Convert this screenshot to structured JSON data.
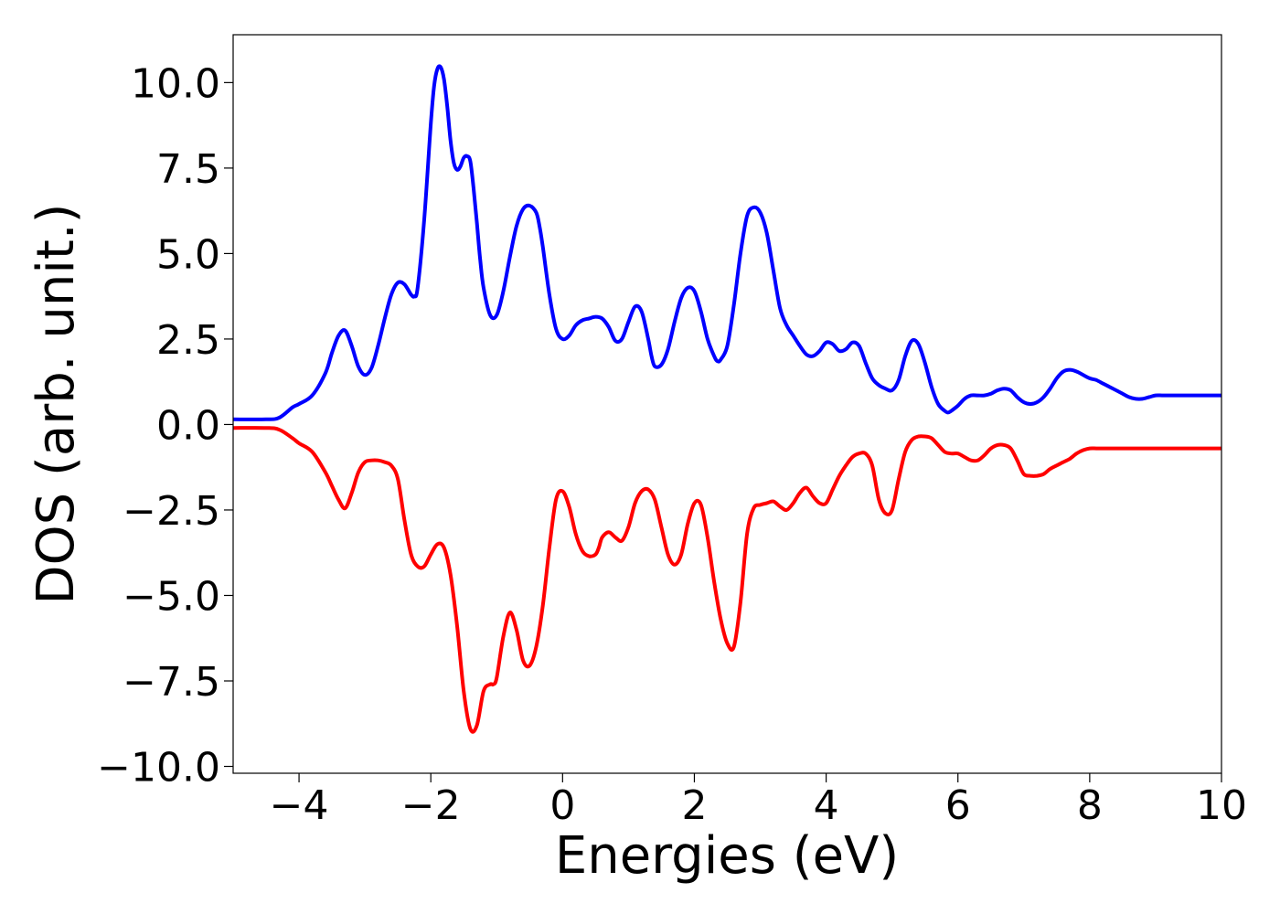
{
  "chart_data": {
    "type": "line",
    "title": "",
    "xlabel": "Energies (eV)",
    "ylabel": "DOS (arb. unit.)",
    "xlim": [
      -5,
      10
    ],
    "ylim": [
      -10.2,
      11.4
    ],
    "grid": false,
    "legend": "none",
    "x_ticks": [
      -4,
      -2,
      0,
      2,
      4,
      6,
      8,
      10
    ],
    "x_tick_labels": [
      "−4",
      "−2",
      "0",
      "2",
      "4",
      "6",
      "8",
      "10"
    ],
    "y_ticks": [
      10.0,
      7.5,
      5.0,
      2.5,
      0.0,
      -2.5,
      -5.0,
      -7.5,
      -10.0
    ],
    "y_tick_labels": [
      "10.0",
      "7.5",
      "5.0",
      "2.5",
      "0.0",
      "−2.5",
      "−5.0",
      "−7.5",
      "−10.0"
    ],
    "series": [
      {
        "color": "#0000ff",
        "x": [
          -5.0,
          -4.5,
          -4.3,
          -4.1,
          -4.0,
          -3.8,
          -3.6,
          -3.5,
          -3.4,
          -3.3,
          -3.2,
          -3.1,
          -3.0,
          -2.9,
          -2.8,
          -2.7,
          -2.6,
          -2.5,
          -2.4,
          -2.3,
          -2.25,
          -2.2,
          -2.1,
          -2.0,
          -1.95,
          -1.9,
          -1.85,
          -1.8,
          -1.75,
          -1.7,
          -1.65,
          -1.6,
          -1.55,
          -1.5,
          -1.45,
          -1.4,
          -1.35,
          -1.3,
          -1.25,
          -1.2,
          -1.1,
          -1.0,
          -0.9,
          -0.8,
          -0.7,
          -0.6,
          -0.5,
          -0.4,
          -0.35,
          -0.3,
          -0.2,
          -0.1,
          0.0,
          0.1,
          0.2,
          0.3,
          0.4,
          0.5,
          0.6,
          0.7,
          0.8,
          0.9,
          1.0,
          1.1,
          1.2,
          1.3,
          1.35,
          1.4,
          1.5,
          1.6,
          1.7,
          1.8,
          1.9,
          2.0,
          2.1,
          2.2,
          2.3,
          2.35,
          2.4,
          2.5,
          2.6,
          2.7,
          2.8,
          2.9,
          3.0,
          3.1,
          3.2,
          3.3,
          3.4,
          3.5,
          3.6,
          3.7,
          3.8,
          3.9,
          4.0,
          4.1,
          4.2,
          4.3,
          4.4,
          4.5,
          4.6,
          4.7,
          4.8,
          4.9,
          5.0,
          5.1,
          5.2,
          5.3,
          5.4,
          5.5,
          5.6,
          5.7,
          5.8,
          5.85,
          5.9,
          6.0,
          6.1,
          6.2,
          6.3,
          6.4,
          6.5,
          6.6,
          6.7,
          6.8,
          6.9,
          7.0,
          7.1,
          7.2,
          7.3,
          7.4,
          7.5,
          7.6,
          7.7,
          7.8,
          7.9,
          8.0,
          8.1,
          8.2,
          8.3,
          8.4,
          8.5,
          8.6,
          8.7,
          8.8,
          8.9,
          9.0,
          9.1,
          9.2,
          9.3,
          9.4,
          9.5,
          9.6,
          9.7,
          9.8,
          9.9,
          10.0
        ],
        "y": [
          0.15,
          0.15,
          0.2,
          0.5,
          0.6,
          0.85,
          1.5,
          2.1,
          2.6,
          2.75,
          2.3,
          1.7,
          1.45,
          1.65,
          2.3,
          3.1,
          3.8,
          4.15,
          4.1,
          3.8,
          3.75,
          4.0,
          6.0,
          8.8,
          9.9,
          10.4,
          10.45,
          10.1,
          9.3,
          8.3,
          7.65,
          7.45,
          7.55,
          7.8,
          7.85,
          7.7,
          6.9,
          5.9,
          4.8,
          4.0,
          3.2,
          3.2,
          3.9,
          4.9,
          5.8,
          6.3,
          6.4,
          6.2,
          5.8,
          5.2,
          3.8,
          2.8,
          2.5,
          2.6,
          2.9,
          3.05,
          3.1,
          3.15,
          3.1,
          2.85,
          2.45,
          2.5,
          3.0,
          3.45,
          3.3,
          2.5,
          2.0,
          1.7,
          1.75,
          2.2,
          3.0,
          3.7,
          4.0,
          3.9,
          3.3,
          2.5,
          2.0,
          1.85,
          1.9,
          2.3,
          3.5,
          5.0,
          6.1,
          6.35,
          6.2,
          5.6,
          4.5,
          3.4,
          2.9,
          2.6,
          2.3,
          2.05,
          2.0,
          2.15,
          2.4,
          2.35,
          2.15,
          2.2,
          2.4,
          2.3,
          1.8,
          1.35,
          1.15,
          1.05,
          1.0,
          1.3,
          2.0,
          2.45,
          2.35,
          1.8,
          1.1,
          0.6,
          0.4,
          0.35,
          0.4,
          0.55,
          0.75,
          0.85,
          0.85,
          0.85,
          0.9,
          1.0,
          1.05,
          1.0,
          0.8,
          0.65,
          0.6,
          0.65,
          0.8,
          1.05,
          1.35,
          1.55,
          1.6,
          1.55,
          1.45,
          1.35,
          1.3,
          1.2,
          1.1,
          1.0,
          0.9,
          0.8,
          0.75,
          0.75,
          0.8,
          0.85,
          0.85,
          0.85,
          0.85,
          0.85,
          0.85,
          0.85,
          0.85,
          0.85,
          0.85,
          0.85
        ]
      },
      {
        "color": "#ff0000",
        "x": [
          -5.0,
          -4.5,
          -4.3,
          -4.1,
          -4.0,
          -3.8,
          -3.6,
          -3.5,
          -3.4,
          -3.3,
          -3.2,
          -3.1,
          -3.0,
          -2.9,
          -2.8,
          -2.7,
          -2.6,
          -2.5,
          -2.4,
          -2.3,
          -2.2,
          -2.1,
          -2.0,
          -1.9,
          -1.8,
          -1.7,
          -1.6,
          -1.5,
          -1.4,
          -1.3,
          -1.2,
          -1.1,
          -1.05,
          -1.0,
          -0.9,
          -0.8,
          -0.7,
          -0.6,
          -0.5,
          -0.4,
          -0.3,
          -0.2,
          -0.1,
          0.0,
          0.1,
          0.2,
          0.3,
          0.4,
          0.5,
          0.55,
          0.6,
          0.7,
          0.8,
          0.9,
          1.0,
          1.1,
          1.2,
          1.3,
          1.4,
          1.5,
          1.6,
          1.7,
          1.8,
          1.9,
          2.0,
          2.1,
          2.2,
          2.3,
          2.4,
          2.5,
          2.6,
          2.7,
          2.8,
          2.9,
          3.0,
          3.1,
          3.2,
          3.3,
          3.4,
          3.5,
          3.6,
          3.7,
          3.8,
          3.9,
          4.0,
          4.1,
          4.2,
          4.3,
          4.4,
          4.5,
          4.6,
          4.7,
          4.8,
          4.9,
          5.0,
          5.1,
          5.2,
          5.3,
          5.4,
          5.5,
          5.6,
          5.7,
          5.8,
          5.9,
          6.0,
          6.1,
          6.2,
          6.3,
          6.4,
          6.5,
          6.6,
          6.7,
          6.8,
          6.9,
          7.0,
          7.1,
          7.2,
          7.3,
          7.4,
          7.5,
          7.6,
          7.7,
          7.8,
          7.9,
          8.0,
          8.1,
          8.2,
          8.3,
          8.4,
          8.5,
          8.6,
          8.7,
          8.8,
          8.9,
          9.0,
          9.1,
          9.2,
          9.3,
          9.4,
          9.5,
          9.6,
          9.7,
          9.8,
          9.9,
          10.0
        ],
        "y": [
          -0.1,
          -0.1,
          -0.15,
          -0.4,
          -0.55,
          -0.8,
          -1.4,
          -1.8,
          -2.2,
          -2.45,
          -2.0,
          -1.4,
          -1.1,
          -1.05,
          -1.05,
          -1.1,
          -1.2,
          -1.6,
          -2.8,
          -3.8,
          -4.15,
          -4.15,
          -3.8,
          -3.5,
          -3.6,
          -4.4,
          -5.9,
          -7.8,
          -8.9,
          -8.8,
          -7.8,
          -7.6,
          -7.6,
          -7.4,
          -6.2,
          -5.5,
          -6.0,
          -6.9,
          -7.05,
          -6.5,
          -5.3,
          -3.6,
          -2.2,
          -1.95,
          -2.4,
          -3.2,
          -3.7,
          -3.85,
          -3.8,
          -3.6,
          -3.3,
          -3.15,
          -3.3,
          -3.4,
          -3.0,
          -2.3,
          -1.95,
          -1.9,
          -2.2,
          -3.0,
          -3.8,
          -4.1,
          -3.8,
          -2.9,
          -2.3,
          -2.35,
          -3.3,
          -4.6,
          -5.7,
          -6.4,
          -6.5,
          -5.2,
          -3.2,
          -2.45,
          -2.35,
          -2.3,
          -2.25,
          -2.4,
          -2.5,
          -2.3,
          -2.0,
          -1.85,
          -2.1,
          -2.3,
          -2.3,
          -1.9,
          -1.5,
          -1.2,
          -0.95,
          -0.85,
          -0.85,
          -1.2,
          -2.2,
          -2.6,
          -2.5,
          -1.6,
          -0.8,
          -0.45,
          -0.35,
          -0.35,
          -0.4,
          -0.6,
          -0.8,
          -0.85,
          -0.85,
          -0.95,
          -1.05,
          -1.05,
          -0.9,
          -0.7,
          -0.6,
          -0.6,
          -0.7,
          -1.05,
          -1.45,
          -1.5,
          -1.5,
          -1.45,
          -1.3,
          -1.2,
          -1.1,
          -1.0,
          -0.85,
          -0.75,
          -0.7,
          -0.7,
          -0.7,
          -0.7,
          -0.7,
          -0.7,
          -0.7,
          -0.7,
          -0.7,
          -0.7,
          -0.7,
          -0.7,
          -0.7,
          -0.7,
          -0.7,
          -0.7,
          -0.7,
          -0.7,
          -0.7,
          -0.7,
          -0.7
        ]
      }
    ]
  }
}
